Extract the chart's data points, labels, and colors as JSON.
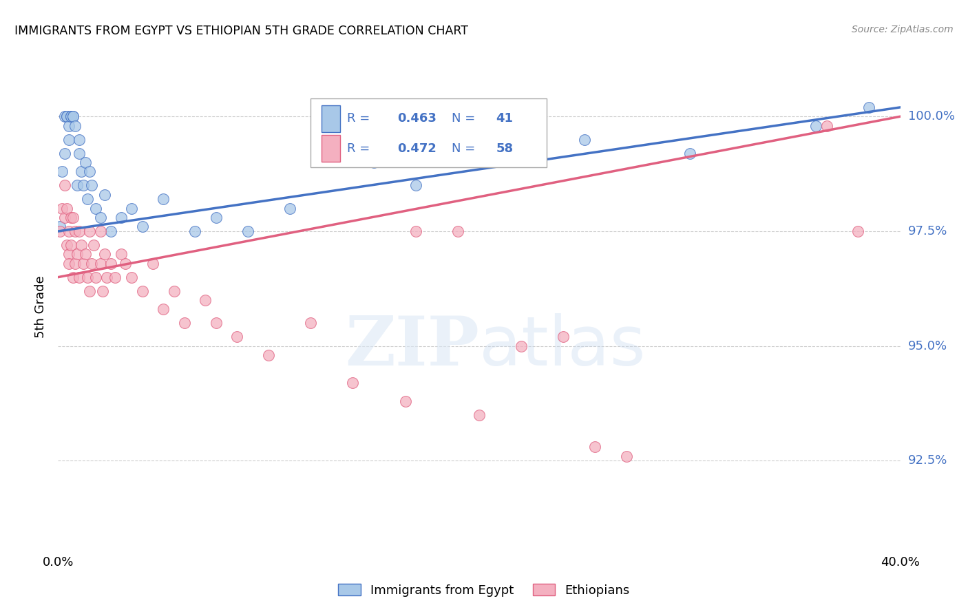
{
  "title": "IMMIGRANTS FROM EGYPT VS ETHIOPIAN 5TH GRADE CORRELATION CHART",
  "source": "Source: ZipAtlas.com",
  "ylabel": "5th Grade",
  "xlim": [
    0.0,
    40.0
  ],
  "ylim": [
    90.5,
    101.2
  ],
  "yticks": [
    92.5,
    95.0,
    97.5,
    100.0
  ],
  "color_egypt": "#a8c8e8",
  "color_ethiopia": "#f4b0c0",
  "color_egypt_line": "#4472c4",
  "color_ethiopia_line": "#e06080",
  "color_tick_label": "#4472c4",
  "egypt_x": [
    0.1,
    0.2,
    0.3,
    0.3,
    0.4,
    0.4,
    0.5,
    0.5,
    0.6,
    0.6,
    0.7,
    0.7,
    0.8,
    0.9,
    1.0,
    1.0,
    1.1,
    1.2,
    1.3,
    1.4,
    1.5,
    1.6,
    1.8,
    2.0,
    2.2,
    2.5,
    3.0,
    3.5,
    4.0,
    5.0,
    6.5,
    7.5,
    9.0,
    11.0,
    15.0,
    17.0,
    22.0,
    25.0,
    30.0,
    36.0,
    38.5
  ],
  "egypt_y": [
    97.6,
    98.8,
    99.2,
    100.0,
    100.0,
    100.0,
    99.8,
    99.5,
    100.0,
    100.0,
    100.0,
    100.0,
    99.8,
    98.5,
    99.5,
    99.2,
    98.8,
    98.5,
    99.0,
    98.2,
    98.8,
    98.5,
    98.0,
    97.8,
    98.3,
    97.5,
    97.8,
    98.0,
    97.6,
    98.2,
    97.5,
    97.8,
    97.5,
    98.0,
    99.0,
    98.5,
    99.2,
    99.5,
    99.2,
    99.8,
    100.2
  ],
  "ethiopia_x": [
    0.1,
    0.2,
    0.3,
    0.3,
    0.4,
    0.4,
    0.5,
    0.5,
    0.5,
    0.6,
    0.6,
    0.7,
    0.7,
    0.8,
    0.8,
    0.9,
    1.0,
    1.0,
    1.1,
    1.2,
    1.3,
    1.4,
    1.5,
    1.5,
    1.6,
    1.7,
    1.8,
    2.0,
    2.0,
    2.1,
    2.2,
    2.3,
    2.5,
    2.7,
    3.0,
    3.2,
    3.5,
    4.0,
    4.5,
    5.0,
    5.5,
    6.0,
    7.0,
    7.5,
    8.5,
    10.0,
    12.0,
    14.0,
    16.5,
    17.0,
    19.0,
    20.0,
    22.0,
    24.0,
    25.5,
    27.0,
    36.5,
    38.0
  ],
  "ethiopia_y": [
    97.5,
    98.0,
    97.8,
    98.5,
    97.2,
    98.0,
    97.5,
    97.0,
    96.8,
    97.8,
    97.2,
    96.5,
    97.8,
    96.8,
    97.5,
    97.0,
    97.5,
    96.5,
    97.2,
    96.8,
    97.0,
    96.5,
    97.5,
    96.2,
    96.8,
    97.2,
    96.5,
    97.5,
    96.8,
    96.2,
    97.0,
    96.5,
    96.8,
    96.5,
    97.0,
    96.8,
    96.5,
    96.2,
    96.8,
    95.8,
    96.2,
    95.5,
    96.0,
    95.5,
    95.2,
    94.8,
    95.5,
    94.2,
    93.8,
    97.5,
    97.5,
    93.5,
    95.0,
    95.2,
    92.8,
    92.6,
    99.8,
    97.5
  ]
}
